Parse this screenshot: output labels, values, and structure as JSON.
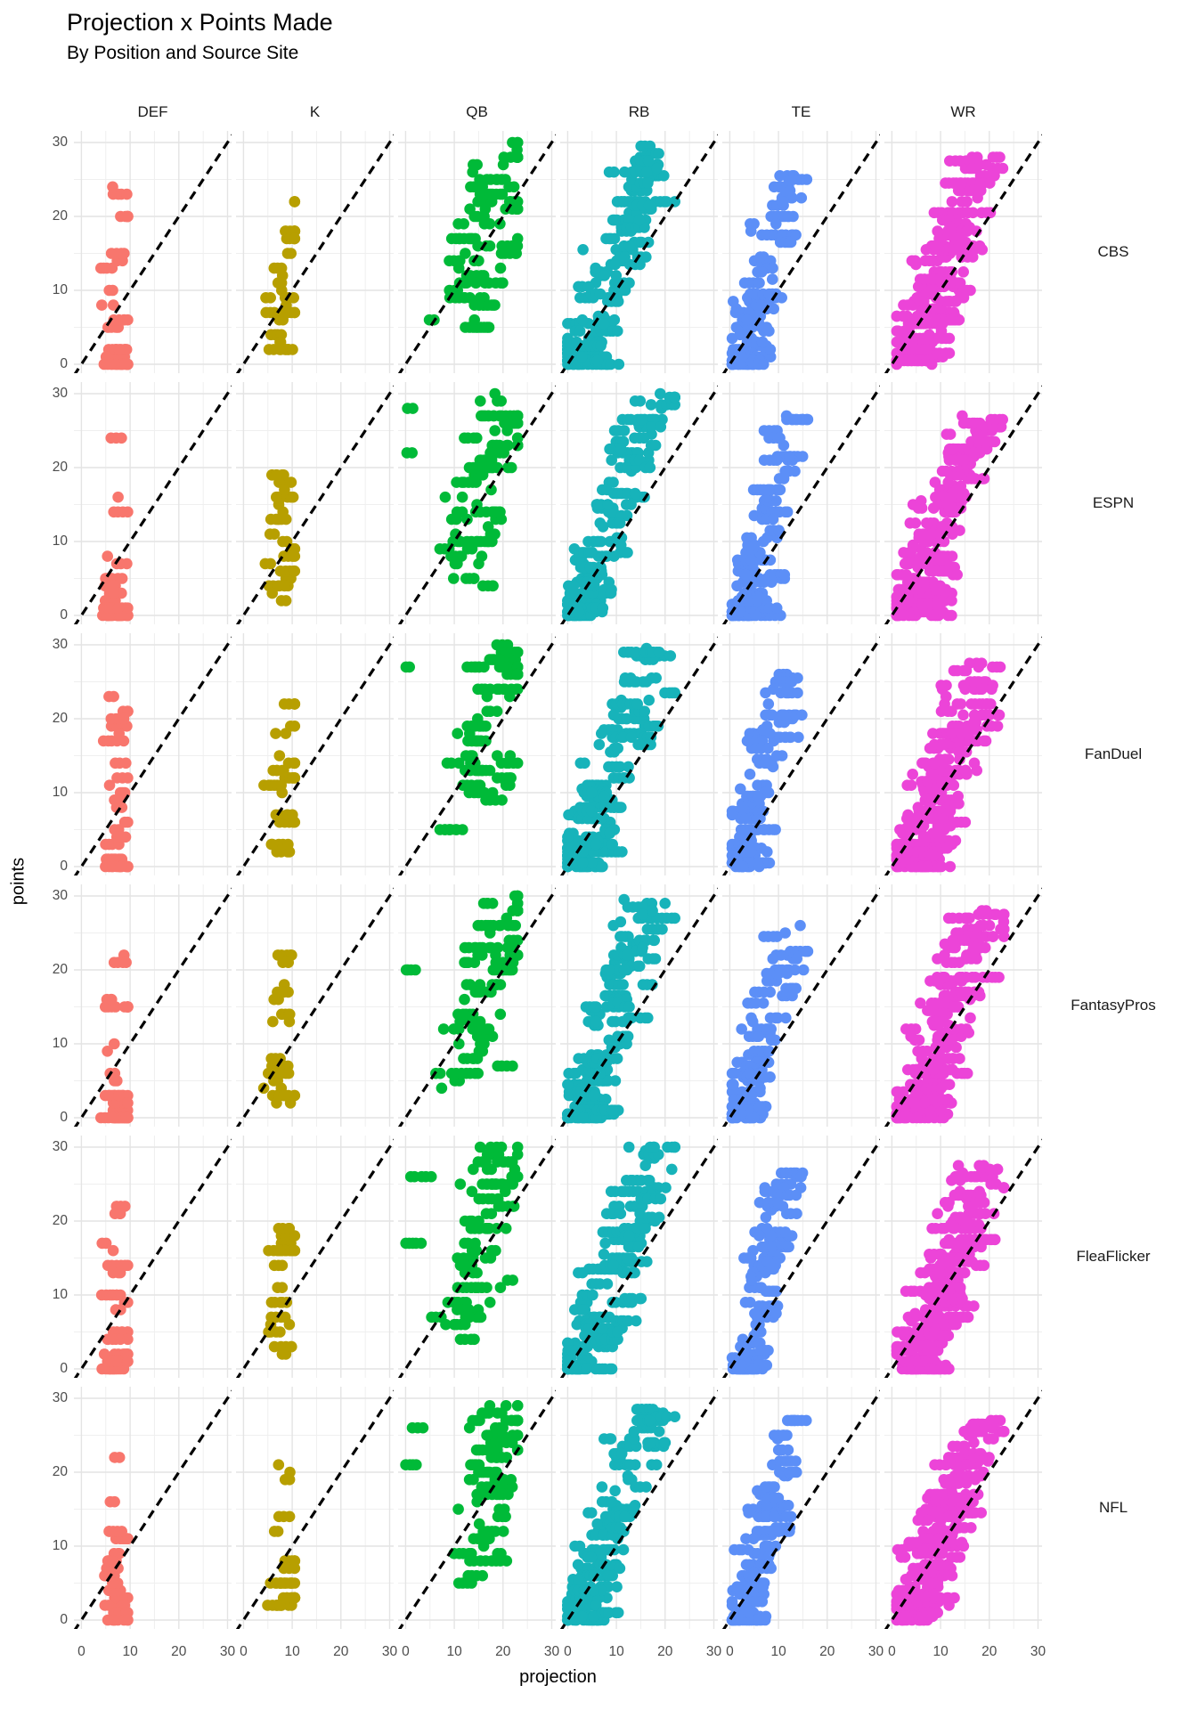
{
  "title": "Projection x Points Made",
  "subtitle": "By Position and Source Site",
  "chart_data": {
    "type": "scatter",
    "facet": {
      "col_field": "position",
      "row_field": "source_site"
    },
    "rows": [
      "CBS",
      "ESPN",
      "FanDuel",
      "FantasyPros",
      "FleaFlicker",
      "NFL"
    ],
    "columns": [
      {
        "label": "DEF",
        "color": "#F8766D",
        "points_spec": {
          "n": 70,
          "y_min": 0,
          "y_max": 24,
          "y_skew": 2.0,
          "y_step": 1,
          "x_base": 6.2,
          "x_per_y": 0.03,
          "x_sd": 1.1,
          "x_min": 4,
          "x_max": 9.5,
          "low_x_frac": 0
        }
      },
      {
        "label": "K",
        "color": "#B79F00",
        "points_spec": {
          "n": 55,
          "y_min": 2,
          "y_max": 22,
          "y_skew": 1.4,
          "y_step": 1,
          "x_base": 6.8,
          "x_per_y": 0.06,
          "x_sd": 1.4,
          "x_min": 3,
          "x_max": 10.5,
          "low_x_frac": 0
        }
      },
      {
        "label": "QB",
        "color": "#00BA38",
        "points_spec": {
          "n": 145,
          "y_min": 3,
          "y_max": 30,
          "y_skew": 0.72,
          "y_step": 1,
          "x_base": 9.0,
          "x_per_y": 0.38,
          "x_sd": 3.2,
          "x_min": 0,
          "x_max": 23,
          "low_x_frac": 0.05
        }
      },
      {
        "label": "RB",
        "color": "#17B3BA",
        "points_spec": {
          "n": 300,
          "y_min": 0,
          "y_max": 30,
          "y_skew": 1.8,
          "y_step": 0.5,
          "x_base": 1.5,
          "x_per_y": 0.52,
          "x_sd": 2.8,
          "x_min": 0,
          "x_max": 22,
          "low_x_frac": 0
        }
      },
      {
        "label": "TE",
        "color": "#5C8FF7",
        "points_spec": {
          "n": 215,
          "y_min": 0,
          "y_max": 27,
          "y_skew": 2.0,
          "y_step": 0.5,
          "x_base": 2.0,
          "x_per_y": 0.34,
          "x_sd": 1.9,
          "x_min": 0.5,
          "x_max": 16,
          "low_x_frac": 0
        }
      },
      {
        "label": "WR",
        "color": "#EC44D8",
        "points_spec": {
          "n": 400,
          "y_min": 0,
          "y_max": 28,
          "y_skew": 1.6,
          "y_step": 0.5,
          "x_base": 3.5,
          "x_per_y": 0.5,
          "x_sd": 2.9,
          "x_min": 1,
          "x_max": 23,
          "low_x_frac": 0
        }
      }
    ],
    "x": {
      "label": "projection",
      "range": [
        0,
        30
      ],
      "ticks": [
        0,
        10,
        20,
        30
      ],
      "minor_ticks": [
        5,
        15,
        25
      ]
    },
    "y": {
      "label": "points",
      "range": [
        0,
        30
      ],
      "ticks": [
        30,
        20,
        10,
        0
      ],
      "minor_ticks": [
        5,
        15,
        25
      ]
    },
    "reference_line": {
      "type": "identity",
      "slope": 1,
      "intercept": 0,
      "style": "dashed",
      "color": "#000000"
    },
    "style": {
      "grid_major_color": "#E4E4E4",
      "grid_minor_color": "#EFEFEF",
      "panel_background": "#ffffff",
      "point_radius": 6.3,
      "dash_pattern": "10 7",
      "dash_width": 3.2
    }
  }
}
